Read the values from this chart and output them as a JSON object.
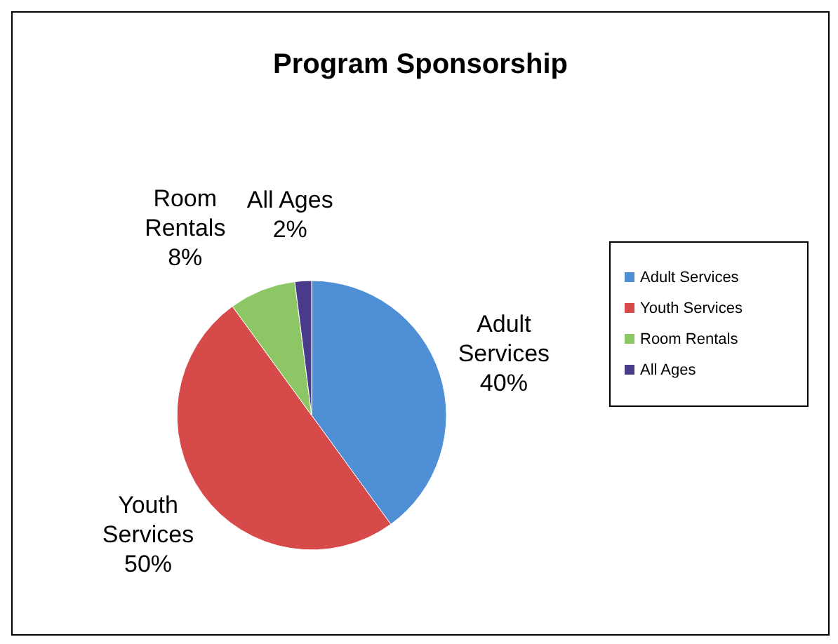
{
  "chart_data": {
    "type": "pie",
    "title": "Program Sponsorship",
    "categories": [
      "Adult Services",
      "Youth Services",
      "Room Rentals",
      "All Ages"
    ],
    "values": [
      40,
      50,
      8,
      2
    ],
    "colors": [
      "#4f8fd6",
      "#d64a4a",
      "#8cc665",
      "#4a3a8a"
    ],
    "value_labels": [
      "40%",
      "50%",
      "8%",
      "2%"
    ],
    "legend": "right"
  }
}
